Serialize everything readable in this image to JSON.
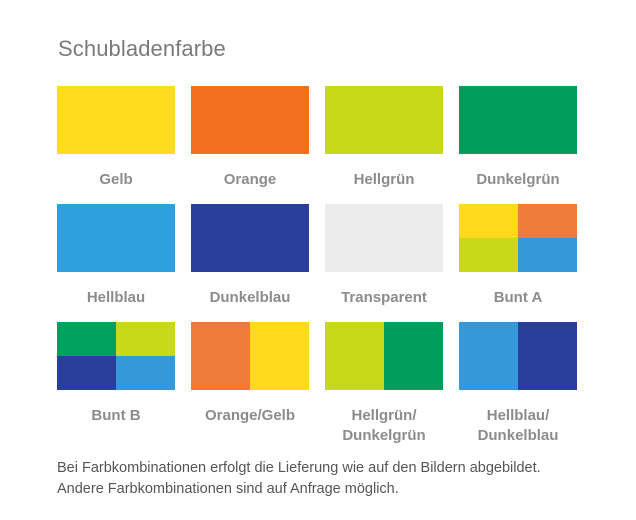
{
  "title": "Schubladenfarbe",
  "swatches": [
    {
      "label": "Gelb",
      "kind": "solid",
      "colors": [
        "#ffdc1f"
      ]
    },
    {
      "label": "Orange",
      "kind": "solid",
      "colors": [
        "#f07020"
      ]
    },
    {
      "label": "Hellgrün",
      "kind": "solid",
      "colors": [
        "#c8d81a"
      ]
    },
    {
      "label": "Dunkelgrün",
      "kind": "solid",
      "colors": [
        "#009e5a"
      ]
    },
    {
      "label": "Hellblau",
      "kind": "solid",
      "colors": [
        "#2f9fe0"
      ]
    },
    {
      "label": "Dunkelblau",
      "kind": "solid",
      "colors": [
        "#2a3f9c"
      ]
    },
    {
      "label": "Transparent",
      "kind": "solid",
      "colors": [
        "#ececec"
      ]
    },
    {
      "label": "Bunt A",
      "kind": "quad",
      "colors": [
        "#ffd91c",
        "#f07a3a",
        "#c8d81a",
        "#3598d8"
      ]
    },
    {
      "label": "Bunt B",
      "kind": "quad",
      "colors": [
        "#00a05e",
        "#c8d81a",
        "#2a3f9c",
        "#3598d8"
      ]
    },
    {
      "label": "Orange/Gelb",
      "kind": "half",
      "colors": [
        "#f07a3a",
        "#ffd91c"
      ]
    },
    {
      "label": "Hellgrün/\nDunkelgrün",
      "kind": "half",
      "colors": [
        "#c8d81a",
        "#009e5a"
      ]
    },
    {
      "label": "Hellblau/\nDunkelblau",
      "kind": "half",
      "colors": [
        "#3598d8",
        "#2a3f9c"
      ]
    }
  ],
  "note": {
    "line1": "Bei Farbkombinationen erfolgt die Lieferung wie auf den Bildern abgebildet.",
    "line2": "Andere Farbkombinationen sind auf Anfrage möglich."
  }
}
